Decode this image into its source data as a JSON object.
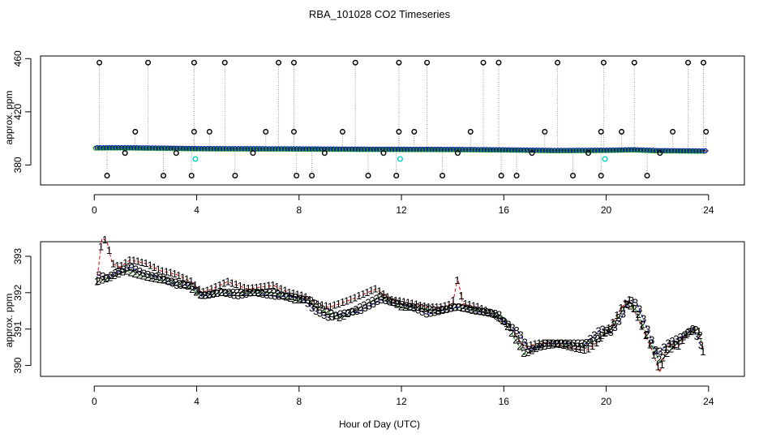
{
  "chart_data": {
    "title": "RBA_101028  CO2 Timeseries",
    "xlabel": "Hour of Day (UTC)",
    "panels": [
      {
        "name": "overview",
        "type": "scatter",
        "ylabel": "approx. ppm",
        "xlim": [
          -2.1,
          25.4
        ],
        "ylim": [
          365,
          462
        ],
        "xticks": [
          0,
          4,
          8,
          12,
          16,
          20,
          24
        ],
        "yticks": [
          380,
          420,
          460
        ],
        "baseline": [
          [
            0.0,
            393.0
          ],
          [
            1.0,
            393.1
          ],
          [
            2.0,
            392.9
          ],
          [
            3.0,
            392.7
          ],
          [
            4.0,
            392.4
          ],
          [
            6.0,
            392.3
          ],
          [
            8.0,
            392.2
          ],
          [
            10.0,
            392.0
          ],
          [
            12.0,
            391.9
          ],
          [
            14.0,
            391.8
          ],
          [
            16.0,
            391.5
          ],
          [
            18.0,
            391.0
          ],
          [
            20.0,
            391.2
          ],
          [
            21.0,
            391.6
          ],
          [
            22.0,
            390.9
          ],
          [
            24.0,
            390.6
          ]
        ],
        "spikes_high": [
          0.2,
          2.1,
          3.9,
          5.1,
          7.2,
          7.8,
          10.2,
          11.9,
          13.0,
          15.2,
          15.8,
          18.1,
          19.9,
          21.1,
          23.2,
          23.8
        ],
        "spikes_mid": [
          1.6,
          3.9,
          4.5,
          6.7,
          7.8,
          9.7,
          11.9,
          12.5,
          14.7,
          17.6,
          19.8,
          20.6,
          22.6,
          23.9
        ],
        "spikes_low": [
          0.5,
          2.7,
          3.8,
          5.5,
          7.9,
          8.5,
          10.7,
          11.8,
          13.6,
          15.9,
          16.5,
          18.7,
          19.8,
          21.6
        ],
        "spikes_small": [
          1.2,
          3.2,
          6.2,
          9.0,
          11.3,
          14.2,
          17.1,
          19.3,
          22.1
        ],
        "cyan_points": [
          [
            3.95,
            384.5
          ],
          [
            11.95,
            384.5
          ],
          [
            19.95,
            384.5
          ]
        ],
        "spike_values": {
          "high": 457,
          "mid": 405,
          "low": 372,
          "small": 389
        }
      },
      {
        "name": "detail",
        "type": "line",
        "ylabel": "approx. ppm",
        "xlim": [
          -2.1,
          25.4
        ],
        "ylim": [
          389.7,
          393.4
        ],
        "xticks": [
          0,
          4,
          8,
          12,
          16,
          20,
          24
        ],
        "yticks": [
          390,
          391,
          392,
          393
        ],
        "series": [
          {
            "name": "1",
            "color": "#dd0000",
            "points": [
              [
                0.1,
                392.3
              ],
              [
                0.3,
                393.5
              ],
              [
                0.5,
                393.4
              ],
              [
                0.7,
                392.8
              ],
              [
                1.0,
                392.7
              ],
              [
                1.4,
                392.9
              ],
              [
                2.0,
                392.8
              ],
              [
                2.6,
                392.6
              ],
              [
                3.2,
                392.5
              ],
              [
                3.8,
                392.3
              ],
              [
                4.2,
                392.0
              ],
              [
                4.6,
                392.1
              ],
              [
                5.2,
                392.3
              ],
              [
                6.0,
                392.1
              ],
              [
                7.0,
                392.2
              ],
              [
                7.6,
                392.0
              ],
              [
                8.2,
                391.9
              ],
              [
                8.6,
                391.7
              ],
              [
                9.2,
                391.6
              ],
              [
                10.0,
                391.8
              ],
              [
                11.0,
                392.1
              ],
              [
                11.6,
                391.8
              ],
              [
                12.4,
                391.7
              ],
              [
                13.0,
                391.6
              ],
              [
                13.6,
                391.6
              ],
              [
                14.0,
                391.7
              ],
              [
                14.2,
                392.4
              ],
              [
                14.4,
                391.7
              ],
              [
                15.0,
                391.6
              ],
              [
                15.6,
                391.4
              ],
              [
                16.2,
                391.1
              ],
              [
                16.8,
                390.5
              ],
              [
                17.3,
                390.6
              ],
              [
                18.0,
                390.6
              ],
              [
                19.2,
                390.4
              ],
              [
                19.6,
                390.6
              ],
              [
                20.2,
                391.1
              ],
              [
                20.6,
                391.6
              ],
              [
                20.9,
                391.8
              ],
              [
                21.3,
                391.2
              ],
              [
                21.8,
                390.4
              ],
              [
                22.1,
                389.8
              ],
              [
                22.4,
                390.6
              ],
              [
                22.8,
                390.5
              ],
              [
                23.2,
                390.9
              ],
              [
                23.6,
                391.0
              ],
              [
                23.8,
                390.3
              ]
            ]
          },
          {
            "name": "2",
            "color": "#009900",
            "points": [
              [
                0.1,
                392.3
              ],
              [
                0.6,
                392.4
              ],
              [
                1.2,
                392.6
              ],
              [
                1.6,
                392.5
              ],
              [
                2.2,
                392.4
              ],
              [
                3.0,
                392.3
              ],
              [
                3.6,
                392.2
              ],
              [
                4.2,
                391.9
              ],
              [
                5.0,
                392.0
              ],
              [
                6.0,
                392.0
              ],
              [
                7.0,
                392.0
              ],
              [
                7.8,
                391.8
              ],
              [
                8.4,
                391.8
              ],
              [
                9.0,
                391.5
              ],
              [
                9.6,
                391.3
              ],
              [
                10.4,
                391.6
              ],
              [
                11.2,
                391.9
              ],
              [
                12.0,
                391.6
              ],
              [
                12.6,
                391.6
              ],
              [
                13.4,
                391.5
              ],
              [
                14.2,
                391.6
              ],
              [
                15.0,
                391.5
              ],
              [
                15.8,
                391.4
              ],
              [
                16.2,
                391.0
              ],
              [
                16.8,
                390.3
              ],
              [
                17.4,
                390.5
              ],
              [
                18.2,
                390.6
              ],
              [
                19.0,
                390.5
              ],
              [
                19.6,
                390.7
              ],
              [
                20.2,
                391.0
              ],
              [
                20.8,
                391.7
              ],
              [
                21.2,
                391.5
              ],
              [
                21.6,
                390.8
              ],
              [
                22.1,
                390.1
              ],
              [
                22.6,
                390.5
              ],
              [
                23.2,
                390.9
              ],
              [
                23.6,
                391.0
              ],
              [
                23.8,
                390.4
              ]
            ]
          },
          {
            "name": "3",
            "color": "#0000cc",
            "points": [
              [
                0.1,
                392.5
              ],
              [
                0.5,
                392.4
              ],
              [
                1.0,
                392.6
              ],
              [
                1.4,
                392.7
              ],
              [
                2.0,
                392.5
              ],
              [
                2.6,
                392.4
              ],
              [
                3.2,
                392.2
              ],
              [
                3.8,
                392.2
              ],
              [
                4.2,
                391.9
              ],
              [
                5.0,
                392.0
              ],
              [
                5.6,
                391.9
              ],
              [
                6.2,
                392.0
              ],
              [
                7.0,
                391.9
              ],
              [
                7.6,
                391.9
              ],
              [
                8.2,
                391.8
              ],
              [
                8.6,
                391.5
              ],
              [
                9.2,
                391.3
              ],
              [
                9.6,
                391.4
              ],
              [
                10.4,
                391.5
              ],
              [
                11.2,
                391.8
              ],
              [
                11.8,
                391.7
              ],
              [
                12.4,
                391.6
              ],
              [
                13.0,
                391.4
              ],
              [
                13.6,
                391.5
              ],
              [
                14.2,
                391.6
              ],
              [
                14.8,
                391.5
              ],
              [
                15.6,
                391.4
              ],
              [
                16.0,
                391.2
              ],
              [
                16.6,
                390.9
              ],
              [
                17.0,
                390.4
              ],
              [
                17.6,
                390.6
              ],
              [
                18.4,
                390.6
              ],
              [
                19.2,
                390.6
              ],
              [
                19.8,
                391.0
              ],
              [
                20.2,
                390.9
              ],
              [
                20.6,
                391.3
              ],
              [
                20.9,
                391.8
              ],
              [
                21.2,
                391.7
              ],
              [
                21.5,
                391.2
              ],
              [
                22.0,
                390.3
              ],
              [
                22.4,
                390.6
              ],
              [
                23.0,
                390.8
              ],
              [
                23.4,
                391.0
              ],
              [
                23.8,
                390.4
              ]
            ]
          }
        ]
      }
    ]
  }
}
